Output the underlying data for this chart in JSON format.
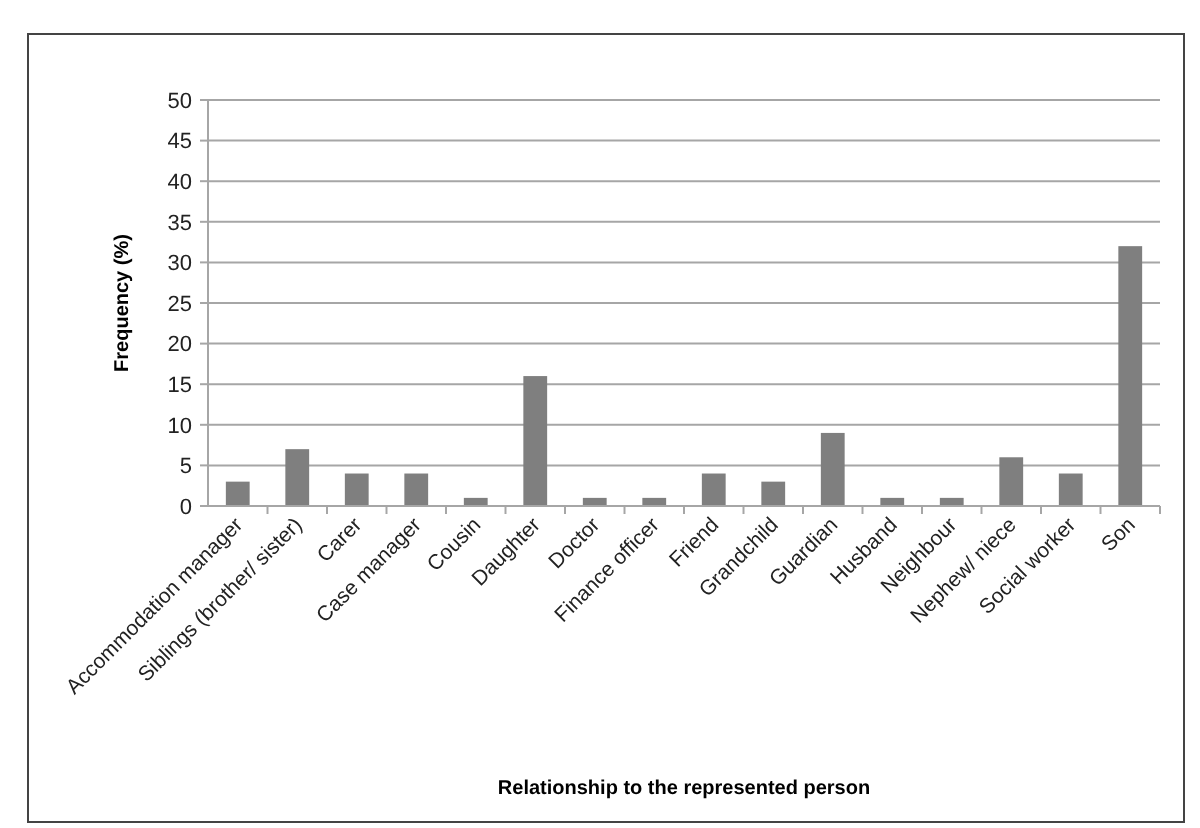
{
  "chart_data": {
    "type": "bar",
    "xlabel": "Relationship to the represented person",
    "ylabel": "Frequency (%)",
    "categories": [
      "Accommodation manager",
      "Siblings (brother/ sister)",
      "Carer",
      "Case manager",
      "Cousin",
      "Daughter",
      "Doctor",
      "Finance officer",
      "Friend",
      "Grandchild",
      "Guardian",
      "Husband",
      "Neighbour",
      "Nephew/ niece",
      "Social worker",
      "Son"
    ],
    "values": [
      3,
      7,
      4,
      4,
      1,
      16,
      1,
      1,
      4,
      3,
      9,
      1,
      1,
      6,
      4,
      32
    ],
    "color": "#7f7f7f",
    "ylim": [
      0,
      50
    ],
    "yticks": [
      0,
      5,
      10,
      15,
      20,
      25,
      30,
      35,
      40,
      45,
      50
    ],
    "grid": "y"
  }
}
